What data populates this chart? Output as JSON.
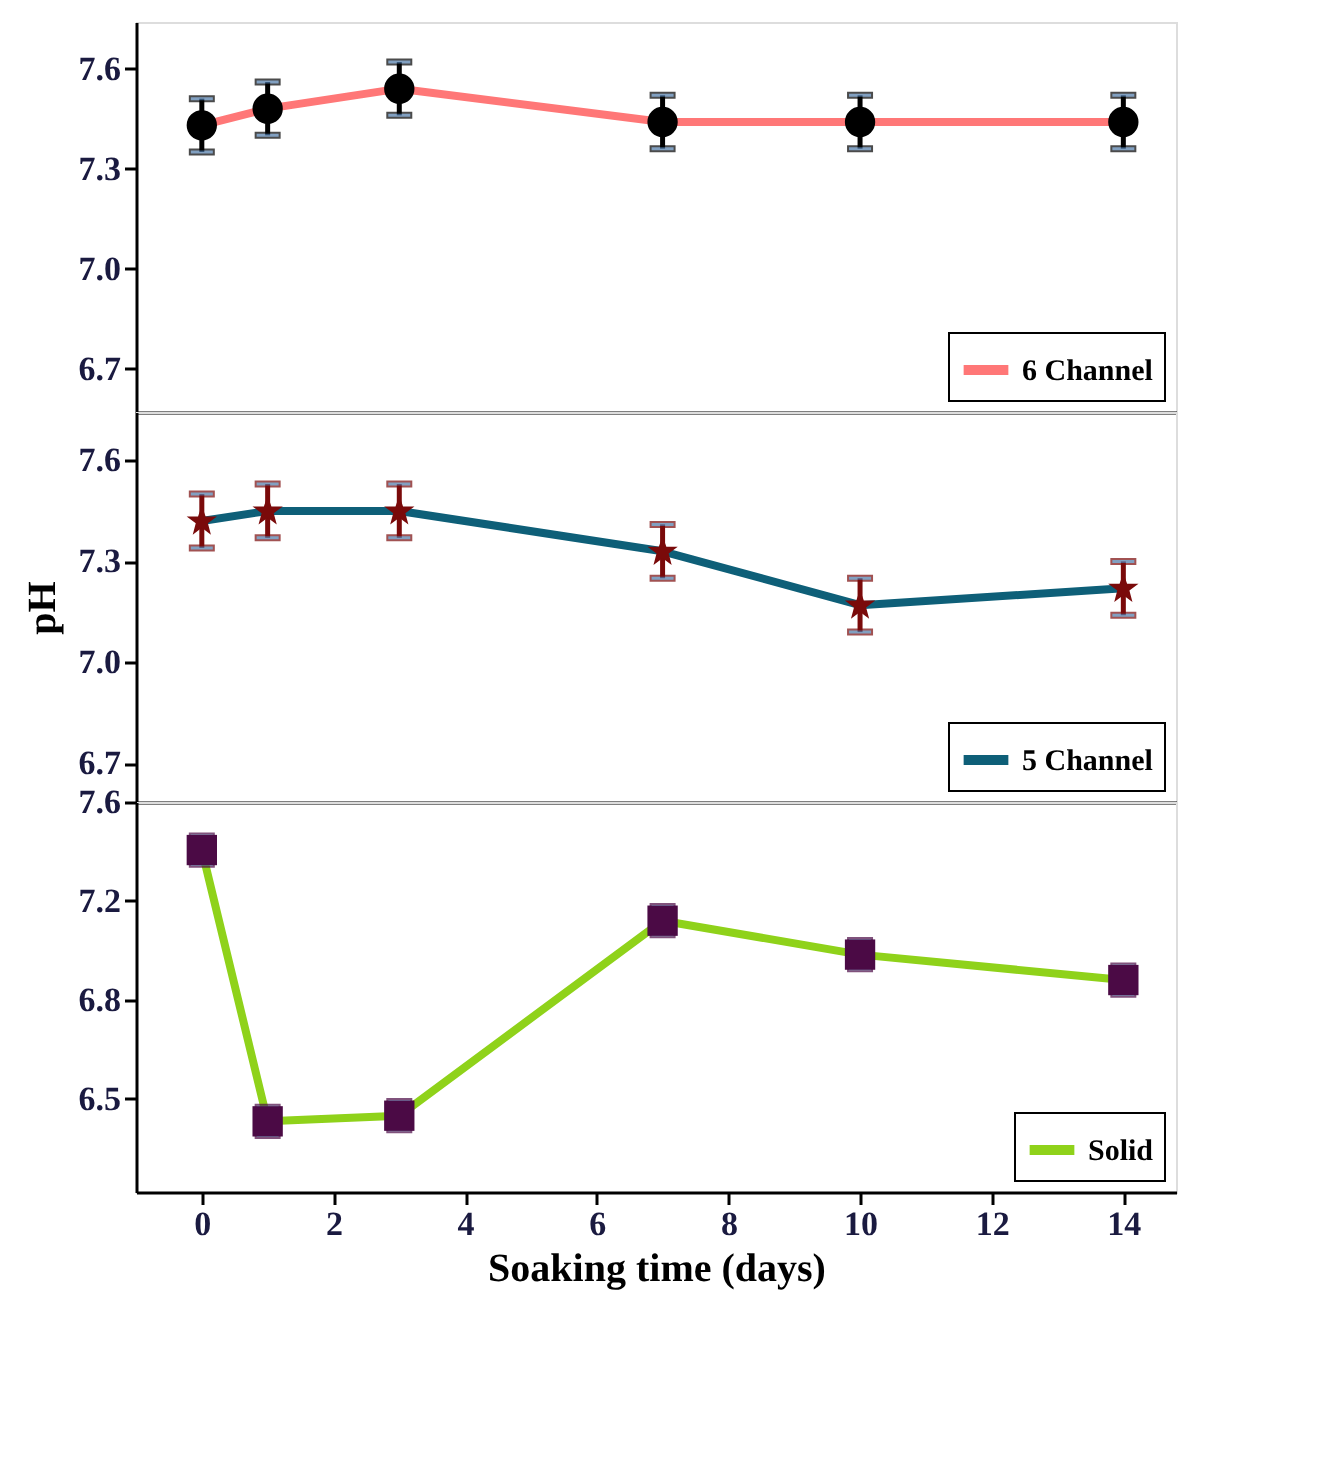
{
  "chart_data": [
    {
      "type": "line",
      "x": [
        0,
        1,
        3,
        7,
        10,
        14
      ],
      "xlim": [
        -1,
        14.8
      ],
      "ylim": [
        6.57,
        7.74
      ],
      "yticks": [
        6.7,
        {
          "value": 7,
          "label": "7.0"
        },
        7.3,
        7.6
      ],
      "tick_labels": "y",
      "legend": "bottom right",
      "marker": "circle",
      "grid": false,
      "series": [
        {
          "name": "6 Channel",
          "color": "#ff7777",
          "colors": [
            "#000000",
            "#000000",
            "#000000",
            "#000000",
            "#000000",
            "#000000"
          ],
          "values": [
            7.43,
            7.48,
            7.54,
            7.44,
            7.44,
            7.44
          ],
          "errors": [
            0.08,
            0.08,
            0.08,
            0.08,
            0.08,
            0.08
          ]
        }
      ]
    },
    {
      "type": "line",
      "x": [
        0,
        1,
        3,
        7,
        10,
        14
      ],
      "xlim": [
        -1,
        14.8
      ],
      "ylim": [
        6.585,
        7.744
      ],
      "yticks": [
        6.7,
        {
          "value": 7,
          "label": "7.0"
        },
        7.3,
        7.6
      ],
      "ylabel": "pH",
      "tick_labels": "y",
      "legend": "bottom right",
      "marker": "star",
      "grid": false,
      "series": [
        {
          "name": "5 Channel",
          "color": "#0e5f78",
          "colors": [
            "#7a0a0a",
            "#7a0a0a",
            "#7a0a0a",
            "#7a0a0a",
            "#7a0a0a",
            "#7a0a0a"
          ],
          "values": [
            7.42,
            7.45,
            7.45,
            7.33,
            7.17,
            7.22
          ],
          "errors": [
            0.08,
            0.08,
            0.08,
            0.08,
            0.08,
            0.08
          ]
        }
      ]
    },
    {
      "type": "line",
      "x": [
        0,
        1,
        3,
        7,
        10,
        14
      ],
      "xlim": [
        -1,
        14.8
      ],
      "xticks": [
        0,
        2,
        4,
        6,
        8,
        10,
        12,
        14
      ],
      "xlabel": "Soaking time (days)",
      "ylim": [
        6.17,
        7.55
      ],
      "yticks": [
        6.5,
        {
          "value": 6.85,
          "label": "6.8"
        },
        7.2,
        {
          "value": 7.55,
          "label": "7.6"
        }
      ],
      "legend": "bottom right",
      "marker": "square",
      "grid": false,
      "series": [
        {
          "name": "Solid",
          "color": "#8fd21a",
          "colors": [
            "#4b0a45",
            "#4b0a45",
            "#4b0a45",
            "#4b0a45",
            "#4b0a45",
            "#4b0a45"
          ],
          "values": [
            7.38,
            6.42,
            6.44,
            7.13,
            7.01,
            6.92
          ],
          "errors": [
            0.05,
            0.05,
            0.05,
            0.05,
            0.05,
            0.05
          ]
        }
      ]
    }
  ]
}
